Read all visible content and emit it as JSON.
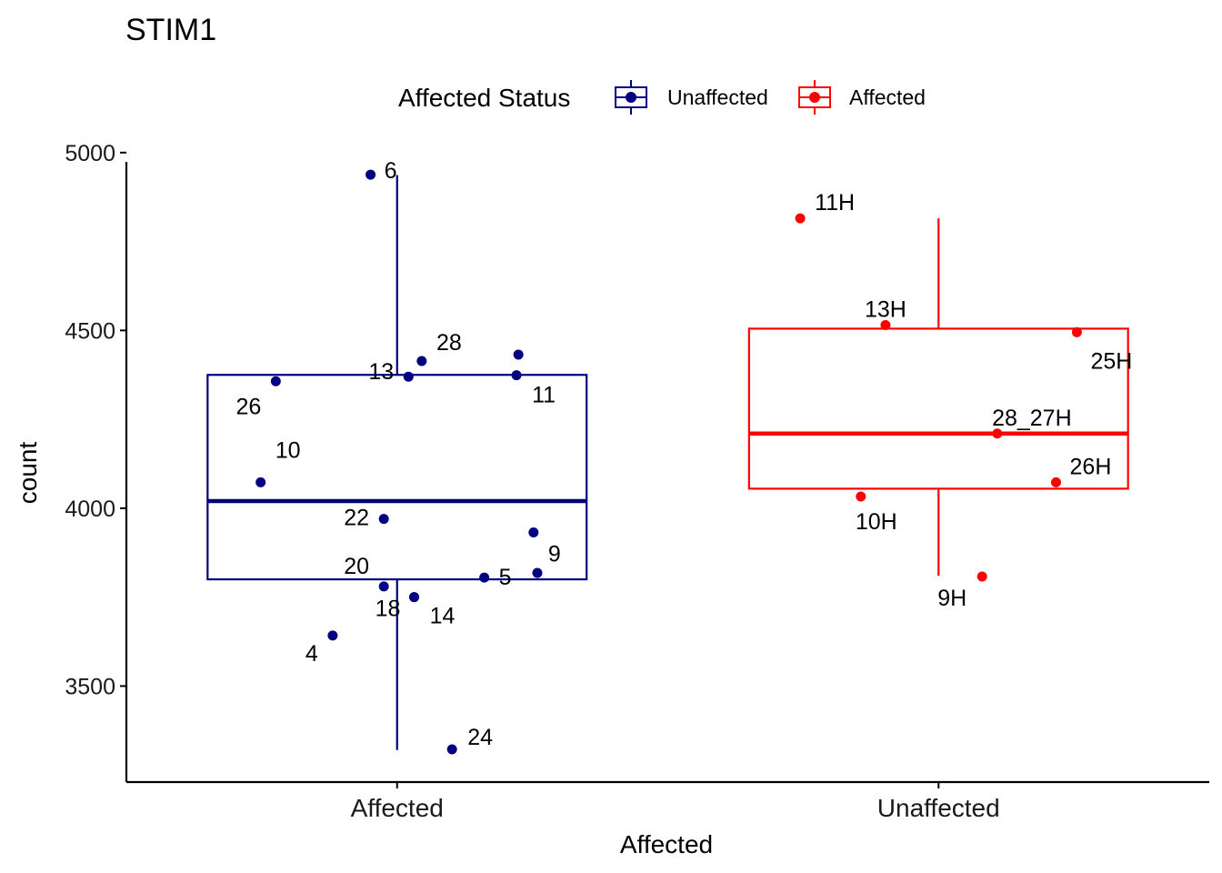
{
  "chart_data": {
    "type": "boxplot",
    "title": "STIM1",
    "xlabel": "Affected",
    "ylabel": "count",
    "ylim": [
      3230,
      5020
    ],
    "yticks": [
      3500,
      4000,
      4500,
      5000
    ],
    "categories": [
      "Affected",
      "Unaffected"
    ],
    "legend": {
      "title": "Affected Status",
      "position": "top",
      "entries": [
        {
          "label": "Unaffected",
          "color": "#000080"
        },
        {
          "label": "Affected",
          "color": "#ff0000"
        }
      ]
    },
    "series": [
      {
        "name": "Unaffected",
        "category": "Affected",
        "color": "#000080",
        "box": {
          "whisker_low": 3320,
          "q1": 3800,
          "median": 4020,
          "q3": 4375,
          "whisker_high": 4937
        },
        "points": [
          {
            "label": "6",
            "value": 4938,
            "jitter": -0.14
          },
          {
            "label": "28",
            "value": 4414,
            "jitter": 0.13
          },
          {
            "label": "13",
            "value": 4370,
            "jitter": 0.06
          },
          {
            "label": "26",
            "value": 4357,
            "jitter": -0.64
          },
          {
            "label": "11",
            "value": 4374,
            "jitter": 0.63
          },
          {
            "label": "",
            "value": 4432,
            "jitter": 0.64
          },
          {
            "label": "10",
            "value": 4073,
            "jitter": -0.72
          },
          {
            "label": "22",
            "value": 3970,
            "jitter": -0.07
          },
          {
            "label": "9",
            "value": 3932,
            "jitter": 0.72
          },
          {
            "label": "20",
            "value": 3780,
            "jitter": -0.07
          },
          {
            "label": "5",
            "value": 3805,
            "jitter": 0.46
          },
          {
            "label": "",
            "value": 3818,
            "jitter": 0.74
          },
          {
            "label": "18",
            "value": 3750,
            "jitter": 0.09
          },
          {
            "label": "14",
            "value": 3750,
            "jitter": 0.09
          },
          {
            "label": "4",
            "value": 3642,
            "jitter": -0.34
          },
          {
            "label": "24",
            "value": 3322,
            "jitter": 0.29
          }
        ]
      },
      {
        "name": "Affected",
        "category": "Unaffected",
        "color": "#ff0000",
        "box": {
          "whisker_low": 3810,
          "q1": 4055,
          "median": 4210,
          "q3": 4505,
          "whisker_high": 4815
        },
        "points": [
          {
            "label": "11H",
            "value": 4815,
            "jitter": -0.73
          },
          {
            "label": "13H",
            "value": 4515,
            "jitter": -0.28
          },
          {
            "label": "25H",
            "value": 4495,
            "jitter": 0.73
          },
          {
            "label": "28_27H",
            "value": 4210,
            "jitter": 0.31
          },
          {
            "label": "26H",
            "value": 4073,
            "jitter": 0.62
          },
          {
            "label": "10H",
            "value": 4033,
            "jitter": -0.41
          },
          {
            "label": "9H",
            "value": 3808,
            "jitter": 0.23
          }
        ]
      }
    ]
  }
}
